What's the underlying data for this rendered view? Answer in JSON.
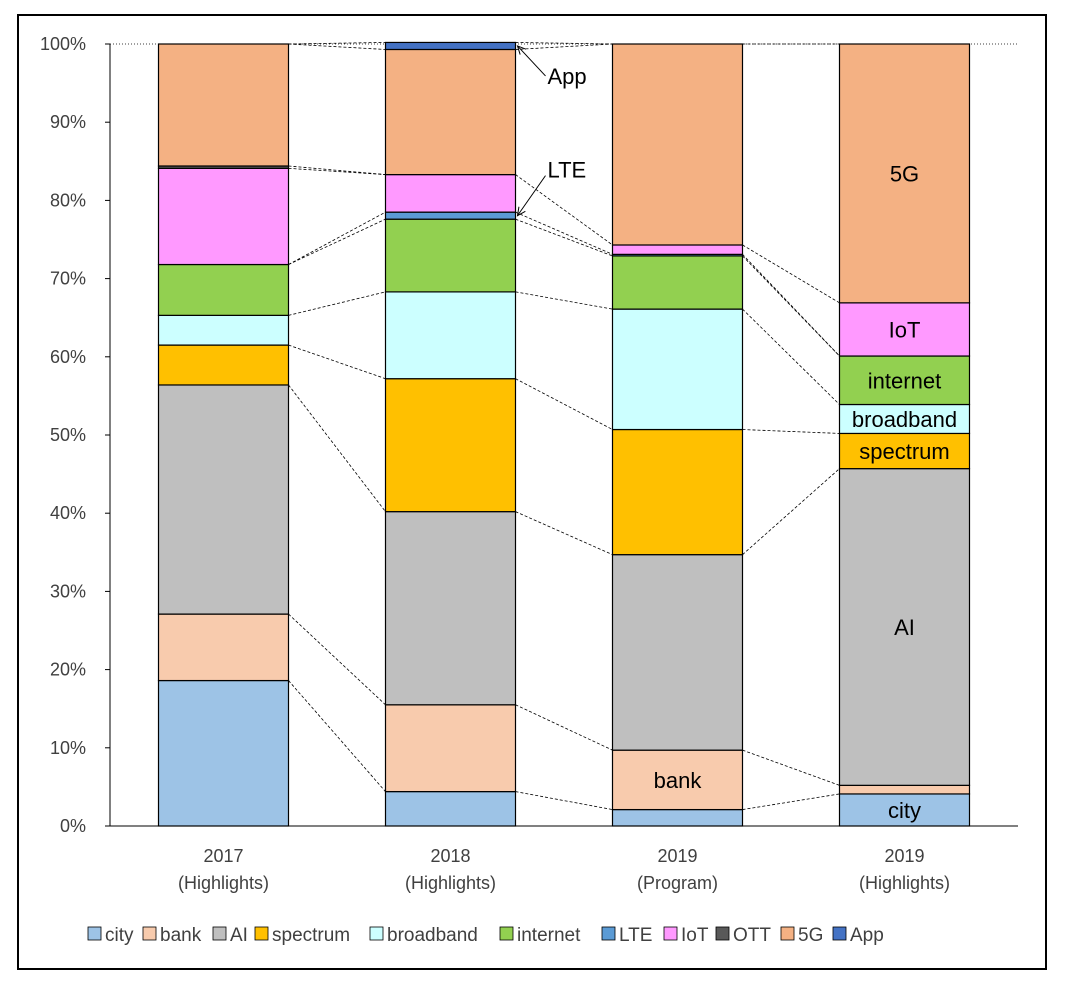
{
  "chart_data": {
    "type": "bar",
    "stacked": true,
    "percent_axis": true,
    "ylim": [
      0,
      100
    ],
    "yticks": [
      "0%",
      "10%",
      "20%",
      "30%",
      "40%",
      "50%",
      "60%",
      "70%",
      "80%",
      "90%",
      "100%"
    ],
    "categories": [
      {
        "line1": "2017",
        "line2": "(Highlights)"
      },
      {
        "line1": "2018",
        "line2": "(Highlights)"
      },
      {
        "line1": "2019",
        "line2": "(Program)"
      },
      {
        "line1": "2019",
        "line2": "(Highlights)"
      }
    ],
    "series": [
      {
        "name": "city",
        "color": "#9dc3e6",
        "values": [
          18.6,
          4.4,
          2.1,
          4.1
        ]
      },
      {
        "name": "bank",
        "color": "#f8cbad",
        "values": [
          8.5,
          11.1,
          7.6,
          1.1
        ]
      },
      {
        "name": "AI",
        "color": "#bfbfbf",
        "values": [
          29.3,
          24.7,
          25.0,
          40.5
        ]
      },
      {
        "name": "spectrum",
        "color": "#ffc000",
        "values": [
          5.1,
          17.0,
          16.0,
          4.5
        ]
      },
      {
        "name": "broadband",
        "color": "#ccffff",
        "values": [
          3.8,
          11.1,
          15.4,
          3.7
        ]
      },
      {
        "name": "internet",
        "color": "#92d050",
        "values": [
          6.5,
          9.3,
          6.8,
          6.2
        ]
      },
      {
        "name": "LTE",
        "color": "#5b9bd5",
        "values": [
          0.0,
          0.9,
          0.2,
          0.0
        ]
      },
      {
        "name": "IoT",
        "color": "#ff99ff",
        "values": [
          12.3,
          4.8,
          1.2,
          6.8
        ]
      },
      {
        "name": "OTT",
        "color": "#595959",
        "values": [
          0.3,
          0.0,
          0.0,
          0.0
        ]
      },
      {
        "name": "5G",
        "color": "#f4b183",
        "values": [
          15.6,
          16.0,
          25.7,
          33.1
        ]
      },
      {
        "name": "App",
        "color": "#4472c4",
        "values": [
          0.0,
          0.9,
          0.0,
          0.0
        ]
      }
    ],
    "bar_labels": [
      {
        "bar": 2,
        "series": "bank",
        "text": "bank"
      },
      {
        "bar": 3,
        "series": "city",
        "text": "city"
      },
      {
        "bar": 3,
        "series": "AI",
        "text": "AI"
      },
      {
        "bar": 3,
        "series": "spectrum",
        "text": "spectrum"
      },
      {
        "bar": 3,
        "series": "broadband",
        "text": "broadband"
      },
      {
        "bar": 3,
        "series": "internet",
        "text": "internet"
      },
      {
        "bar": 3,
        "series": "IoT",
        "text": "IoT"
      },
      {
        "bar": 3,
        "series": "5G",
        "text": "5G"
      }
    ],
    "callouts": [
      {
        "text": "App",
        "bar": 1,
        "series": "App"
      },
      {
        "text": "LTE",
        "bar": 1,
        "series": "LTE"
      }
    ],
    "legend_position": "bottom",
    "connector_lines": "dashed",
    "grid": false
  }
}
